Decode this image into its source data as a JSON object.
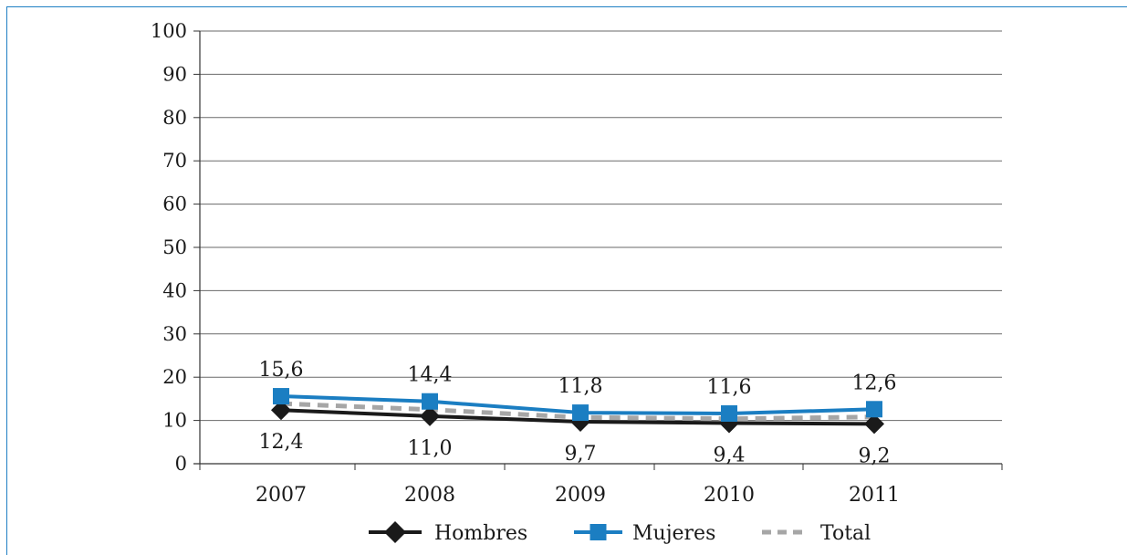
{
  "chart_data": {
    "type": "line",
    "categories": [
      "2007",
      "2008",
      "2009",
      "2010",
      "2011"
    ],
    "series": [
      {
        "name": "Hombres",
        "values": [
          12.4,
          11.0,
          9.7,
          9.4,
          9.2
        ],
        "labels": [
          "12,4",
          "11,0",
          "9,7",
          "9,4",
          "9,2"
        ],
        "color": "#1a1a1a",
        "marker": "diamond"
      },
      {
        "name": "Mujeres",
        "values": [
          15.6,
          14.4,
          11.8,
          11.6,
          12.6
        ],
        "labels": [
          "15,6",
          "14,4",
          "11,8",
          "11,6",
          "12,6"
        ],
        "color": "#1b7ec2",
        "marker": "square"
      },
      {
        "name": "Total",
        "values": [
          13.9,
          12.5,
          10.7,
          10.4,
          10.8
        ],
        "color": "#a6a6a6",
        "line_style": "dashed"
      }
    ],
    "ylim": [
      0,
      100
    ],
    "yticks": [
      0,
      10,
      20,
      30,
      40,
      50,
      60,
      70,
      80,
      90,
      100
    ],
    "grid": true,
    "legend_position": "bottom",
    "title": "",
    "xlabel": "",
    "ylabel": ""
  }
}
